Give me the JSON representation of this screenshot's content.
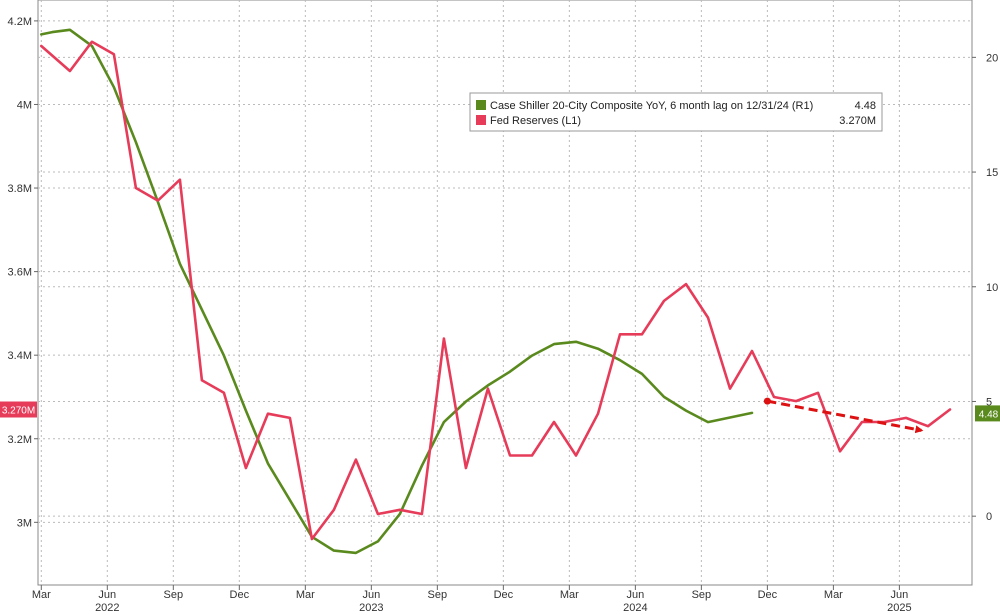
{
  "chart_data": {
    "type": "line",
    "title": "",
    "grid": true,
    "legend_position": "top-right",
    "left_axis": {
      "series": "Fed Reserves (L1)",
      "ylim": [
        2.85,
        4.25
      ],
      "ticks": [
        3.0,
        3.2,
        3.4,
        3.6,
        3.8,
        4.0,
        4.2
      ],
      "tick_labels": [
        "3M",
        "3.2M",
        "3.4M",
        "3.6M",
        "3.8M",
        "4M",
        "4.2M"
      ]
    },
    "right_axis": {
      "series": "Case Shiller 20-City Composite YoY, 6 month lag on 12/31/24 (R1)",
      "ylim": [
        -3.0,
        22.5
      ],
      "ticks": [
        0,
        5,
        10,
        15,
        20
      ],
      "tick_labels": [
        "0",
        "5",
        "10",
        "15",
        "20"
      ]
    },
    "x_axis": {
      "month_ticks": [
        {
          "label": "Mar",
          "m": 2
        },
        {
          "label": "Jun",
          "m": 5
        },
        {
          "label": "Sep",
          "m": 8
        },
        {
          "label": "Dec",
          "m": 11
        },
        {
          "label": "Mar",
          "m": 14
        },
        {
          "label": "Jun",
          "m": 17
        },
        {
          "label": "Sep",
          "m": 20
        },
        {
          "label": "Dec",
          "m": 23
        },
        {
          "label": "Mar",
          "m": 26
        },
        {
          "label": "Jun",
          "m": 29
        },
        {
          "label": "Sep",
          "m": 32
        },
        {
          "label": "Dec",
          "m": 35
        },
        {
          "label": "Mar",
          "m": 38
        },
        {
          "label": "Jun",
          "m": 41
        }
      ],
      "year_labels": [
        {
          "label": "2022",
          "m": 5
        },
        {
          "label": "2023",
          "m": 17
        },
        {
          "label": "2024",
          "m": 29
        },
        {
          "label": "2025",
          "m": 41
        }
      ],
      "range": [
        1.85,
        44.3
      ]
    },
    "series": [
      {
        "name": "Case Shiller 20-City Composite YoY, 6 month lag on 12/31/24 (R1)",
        "axis": "right",
        "color": "#5a8a1e",
        "last_value_label": "4.48",
        "points": [
          [
            2,
            21.0
          ],
          [
            2.5,
            21.1
          ],
          [
            3.3,
            21.2
          ],
          [
            4.3,
            20.5
          ],
          [
            5.3,
            18.7
          ],
          [
            6.3,
            16.3
          ],
          [
            7.3,
            13.7
          ],
          [
            8.3,
            11.0
          ],
          [
            9.3,
            9.0
          ],
          [
            10.3,
            7.0
          ],
          [
            11.3,
            4.6
          ],
          [
            12.3,
            2.3
          ],
          [
            13.3,
            0.7
          ],
          [
            14.3,
            -0.9
          ],
          [
            15.3,
            -1.5
          ],
          [
            16.3,
            -1.6
          ],
          [
            17.3,
            -1.1
          ],
          [
            18.3,
            0.1
          ],
          [
            19.3,
            2.2
          ],
          [
            20.3,
            4.1
          ],
          [
            21.3,
            5.0
          ],
          [
            22.3,
            5.7
          ],
          [
            23.3,
            6.3
          ],
          [
            24.3,
            7.0
          ],
          [
            25.3,
            7.5
          ],
          [
            26.3,
            7.6
          ],
          [
            27.3,
            7.3
          ],
          [
            28.3,
            6.8
          ],
          [
            29.3,
            6.2
          ],
          [
            30.3,
            5.2
          ],
          [
            31.3,
            4.6
          ],
          [
            32.3,
            4.1
          ],
          [
            33.3,
            4.3
          ],
          [
            34.3,
            4.5
          ]
        ]
      },
      {
        "name": "Fed Reserves (L1)",
        "axis": "left",
        "color": "#e63c5a",
        "last_value_label": "3.270M",
        "points": [
          [
            2,
            4.14
          ],
          [
            3.3,
            4.08
          ],
          [
            4.3,
            4.15
          ],
          [
            5.3,
            4.12
          ],
          [
            6.3,
            3.8
          ],
          [
            7.3,
            3.77
          ],
          [
            8.3,
            3.82
          ],
          [
            9.3,
            3.34
          ],
          [
            10.3,
            3.31
          ],
          [
            11.3,
            3.13
          ],
          [
            12.3,
            3.26
          ],
          [
            13.3,
            3.25
          ],
          [
            14.3,
            2.96
          ],
          [
            15.3,
            3.03
          ],
          [
            16.3,
            3.15
          ],
          [
            17.3,
            3.02
          ],
          [
            18.3,
            3.03
          ],
          [
            19.3,
            3.02
          ],
          [
            20.3,
            3.44
          ],
          [
            21.3,
            3.13
          ],
          [
            22.3,
            3.32
          ],
          [
            23.3,
            3.16
          ],
          [
            24.3,
            3.16
          ],
          [
            25.3,
            3.24
          ],
          [
            26.3,
            3.16
          ],
          [
            27.3,
            3.26
          ],
          [
            28.3,
            3.45
          ],
          [
            29.3,
            3.45
          ],
          [
            30.3,
            3.53
          ],
          [
            31.3,
            3.57
          ],
          [
            32.3,
            3.49
          ],
          [
            33.3,
            3.32
          ],
          [
            34.3,
            3.41
          ],
          [
            35.3,
            3.3
          ],
          [
            36.3,
            3.29
          ],
          [
            37.3,
            3.31
          ],
          [
            38.3,
            3.17
          ],
          [
            39.3,
            3.24
          ],
          [
            40.3,
            3.24
          ],
          [
            41.3,
            3.25
          ],
          [
            42.3,
            3.23
          ],
          [
            43.3,
            3.27
          ]
        ]
      }
    ],
    "annotations": [
      {
        "type": "arrow",
        "style": "dashed",
        "color": "#dd1111",
        "from": [
          35.0,
          3.29
        ],
        "to": [
          42.0,
          3.22
        ],
        "axis": "left"
      }
    ]
  }
}
